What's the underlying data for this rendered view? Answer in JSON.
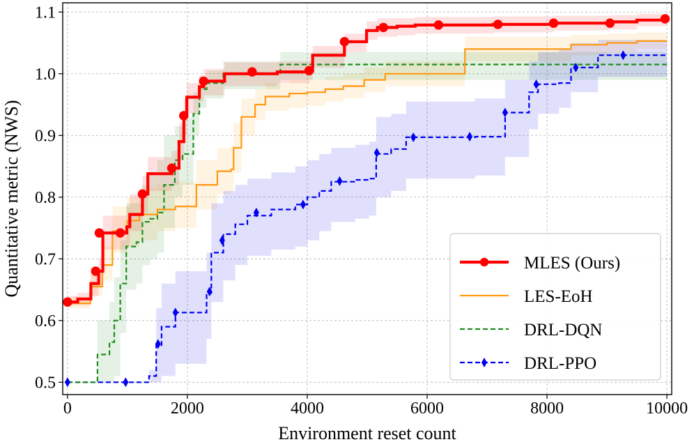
{
  "chart_data": {
    "type": "line",
    "title": "",
    "xlabel": "Environment reset count",
    "ylabel": "Quantitative metric (NWS)",
    "xlim": [
      -80,
      10080
    ],
    "ylim": [
      0.48,
      1.115
    ],
    "xticks": [
      0,
      2000,
      4000,
      6000,
      8000,
      10000
    ],
    "xtick_labels": [
      "0",
      "2000",
      "4000",
      "6000",
      "8000",
      "10000"
    ],
    "yticks": [
      0.5,
      0.6,
      0.7,
      0.8,
      0.9,
      1.0,
      1.1
    ],
    "ytick_labels": [
      "0.5",
      "0.6",
      "0.7",
      "0.8",
      "0.9",
      "1.0",
      "1.1"
    ],
    "grid": true,
    "legend_position": "bottom-right",
    "series": [
      {
        "name": "MLES (Ours)",
        "color": "#ff0000",
        "style": "solid",
        "marker": "circle",
        "steps": [
          [
            0,
            0.63
          ],
          [
            170,
            0.635
          ],
          [
            390,
            0.66
          ],
          [
            520,
            0.68
          ],
          [
            590,
            0.742
          ],
          [
            880,
            0.742
          ],
          [
            990,
            0.752
          ],
          [
            1040,
            0.772
          ],
          [
            1240,
            0.772
          ],
          [
            1250,
            0.805
          ],
          [
            1340,
            0.838
          ],
          [
            1740,
            0.847
          ],
          [
            1860,
            0.89
          ],
          [
            1940,
            0.932
          ],
          [
            1990,
            0.962
          ],
          [
            2200,
            0.979
          ],
          [
            2270,
            0.988
          ],
          [
            2620,
            1.0
          ],
          [
            3500,
            1.003
          ],
          [
            4040,
            1.005
          ],
          [
            4090,
            1.03
          ],
          [
            4620,
            1.052
          ],
          [
            4990,
            1.07
          ],
          [
            5170,
            1.075
          ],
          [
            5500,
            1.077
          ],
          [
            5800,
            1.079
          ],
          [
            7100,
            1.08
          ],
          [
            8100,
            1.082
          ],
          [
            9050,
            1.084
          ],
          [
            9500,
            1.087
          ],
          [
            10000,
            1.089
          ]
        ],
        "markers": [
          [
            0,
            0.63
          ],
          [
            470,
            0.68
          ],
          [
            530,
            0.742
          ],
          [
            880,
            0.742
          ],
          [
            1250,
            0.805
          ],
          [
            1740,
            0.847
          ],
          [
            1940,
            0.932
          ],
          [
            2270,
            0.988
          ],
          [
            3080,
            1.003
          ],
          [
            4030,
            1.005
          ],
          [
            4620,
            1.052
          ],
          [
            5270,
            1.075
          ],
          [
            6190,
            1.079
          ],
          [
            7180,
            1.08
          ],
          [
            8110,
            1.082
          ],
          [
            9050,
            1.082
          ],
          [
            9970,
            1.089
          ]
        ],
        "band_lower": [
          0.625,
          0.625,
          0.64,
          0.655,
          0.715,
          0.715,
          0.72,
          0.745,
          0.745,
          0.775,
          0.81,
          0.82,
          0.86,
          0.9,
          0.935,
          0.955,
          0.965,
          0.98,
          0.985,
          0.99,
          1.01,
          1.035,
          1.055,
          1.06,
          1.062,
          1.065,
          1.067,
          1.07,
          1.072,
          1.077,
          1.08
        ],
        "band_upper": [
          0.64,
          0.645,
          0.685,
          0.7,
          0.77,
          0.77,
          0.785,
          0.805,
          0.805,
          0.835,
          0.865,
          0.875,
          0.92,
          0.96,
          0.985,
          0.998,
          1.008,
          1.018,
          1.02,
          1.02,
          1.045,
          1.065,
          1.085,
          1.09,
          1.09,
          1.092,
          1.093,
          1.094,
          1.095,
          1.097,
          1.098
        ]
      },
      {
        "name": "LES-EoH",
        "color": "#ff9912",
        "style": "solid",
        "marker": "none",
        "steps": [
          [
            0,
            0.628
          ],
          [
            380,
            0.655
          ],
          [
            580,
            0.69
          ],
          [
            750,
            0.745
          ],
          [
            1000,
            0.762
          ],
          [
            1200,
            0.772
          ],
          [
            1500,
            0.78
          ],
          [
            1800,
            0.785
          ],
          [
            2150,
            0.82
          ],
          [
            2500,
            0.842
          ],
          [
            2730,
            0.845
          ],
          [
            2770,
            0.88
          ],
          [
            2900,
            0.93
          ],
          [
            3130,
            0.95
          ],
          [
            3300,
            0.963
          ],
          [
            3700,
            0.968
          ],
          [
            4000,
            0.97
          ],
          [
            4300,
            0.975
          ],
          [
            4600,
            0.98
          ],
          [
            4950,
            0.99
          ],
          [
            5300,
            1.0
          ],
          [
            6630,
            1.04
          ],
          [
            8400,
            1.047
          ],
          [
            9000,
            1.05
          ],
          [
            9500,
            1.053
          ],
          [
            10000,
            1.053
          ]
        ],
        "band_lower": [
          0.62,
          0.64,
          0.665,
          0.71,
          0.72,
          0.73,
          0.745,
          0.75,
          0.78,
          0.805,
          0.81,
          0.84,
          0.9,
          0.925,
          0.94,
          0.945,
          0.948,
          0.955,
          0.96,
          0.97,
          0.98,
          1.02,
          1.03,
          1.035,
          1.04,
          1.04
        ],
        "band_upper": [
          0.638,
          0.675,
          0.72,
          0.785,
          0.8,
          0.815,
          0.82,
          0.825,
          0.86,
          0.88,
          0.885,
          0.92,
          0.96,
          0.975,
          0.985,
          0.99,
          0.99,
          0.995,
          1.0,
          1.01,
          1.02,
          1.06,
          1.063,
          1.065,
          1.067,
          1.067
        ]
      },
      {
        "name": "DRL-DQN",
        "color": "#1e8c1e",
        "style": "dashed",
        "marker": "none",
        "steps": [
          [
            0,
            0.5
          ],
          [
            500,
            0.545
          ],
          [
            700,
            0.565
          ],
          [
            780,
            0.6
          ],
          [
            880,
            0.66
          ],
          [
            980,
            0.72
          ],
          [
            1150,
            0.727
          ],
          [
            1250,
            0.76
          ],
          [
            1380,
            0.765
          ],
          [
            1500,
            0.775
          ],
          [
            1610,
            0.82
          ],
          [
            1790,
            0.86
          ],
          [
            1920,
            0.87
          ],
          [
            2100,
            0.935
          ],
          [
            2200,
            0.975
          ],
          [
            2320,
            0.985
          ],
          [
            2600,
            1.0
          ],
          [
            3550,
            1.015
          ],
          [
            10000,
            1.017
          ]
        ],
        "band_lower": [
          0.5,
          0.5,
          0.5,
          0.51,
          0.58,
          0.65,
          0.66,
          0.69,
          0.7,
          0.71,
          0.75,
          0.8,
          0.82,
          0.9,
          0.945,
          0.96,
          0.975,
          0.99,
          0.995
        ],
        "band_upper": [
          0.5,
          0.6,
          0.63,
          0.67,
          0.73,
          0.79,
          0.79,
          0.82,
          0.84,
          0.86,
          0.9,
          0.915,
          0.93,
          0.97,
          0.995,
          1.005,
          1.02,
          1.035,
          1.04
        ]
      },
      {
        "name": "DRL-PPO",
        "color": "#0000ee",
        "style": "dashed",
        "marker": "diamond",
        "steps": [
          [
            0,
            0.5
          ],
          [
            1360,
            0.51
          ],
          [
            1480,
            0.56
          ],
          [
            1570,
            0.59
          ],
          [
            1800,
            0.613
          ],
          [
            2320,
            0.645
          ],
          [
            2400,
            0.71
          ],
          [
            2600,
            0.74
          ],
          [
            2800,
            0.756
          ],
          [
            3000,
            0.77
          ],
          [
            3400,
            0.78
          ],
          [
            3800,
            0.788
          ],
          [
            4000,
            0.8
          ],
          [
            4200,
            0.81
          ],
          [
            4400,
            0.825
          ],
          [
            4800,
            0.828
          ],
          [
            5030,
            0.83
          ],
          [
            5150,
            0.87
          ],
          [
            5400,
            0.878
          ],
          [
            5650,
            0.897
          ],
          [
            6800,
            0.898
          ],
          [
            7300,
            0.937
          ],
          [
            7700,
            0.97
          ],
          [
            7850,
            0.983
          ],
          [
            8200,
            0.985
          ],
          [
            8400,
            1.01
          ],
          [
            8850,
            1.03
          ],
          [
            10000,
            1.03
          ]
        ],
        "markers": [
          [
            0,
            0.5
          ],
          [
            970,
            0.5
          ],
          [
            1510,
            0.562
          ],
          [
            1800,
            0.613
          ],
          [
            2370,
            0.647
          ],
          [
            2580,
            0.73
          ],
          [
            3150,
            0.775
          ],
          [
            3930,
            0.788
          ],
          [
            4540,
            0.826
          ],
          [
            5160,
            0.872
          ],
          [
            5770,
            0.897
          ],
          [
            6710,
            0.898
          ],
          [
            7300,
            0.937
          ],
          [
            7820,
            0.983
          ],
          [
            8480,
            1.01
          ],
          [
            9270,
            1.03
          ]
        ],
        "band_lower": [
          0.5,
          0.5,
          0.5,
          0.51,
          0.53,
          0.57,
          0.63,
          0.665,
          0.69,
          0.705,
          0.715,
          0.72,
          0.73,
          0.745,
          0.76,
          0.765,
          0.77,
          0.8,
          0.81,
          0.83,
          0.835,
          0.865,
          0.91,
          0.935,
          0.945,
          0.97,
          0.995,
          1.0
        ],
        "band_upper": [
          0.5,
          0.52,
          0.62,
          0.66,
          0.68,
          0.71,
          0.79,
          0.81,
          0.82,
          0.83,
          0.84,
          0.85,
          0.86,
          0.87,
          0.88,
          0.885,
          0.89,
          0.93,
          0.935,
          0.955,
          0.96,
          0.99,
          1.02,
          1.035,
          1.04,
          1.05,
          1.055,
          1.06
        ]
      }
    ]
  }
}
